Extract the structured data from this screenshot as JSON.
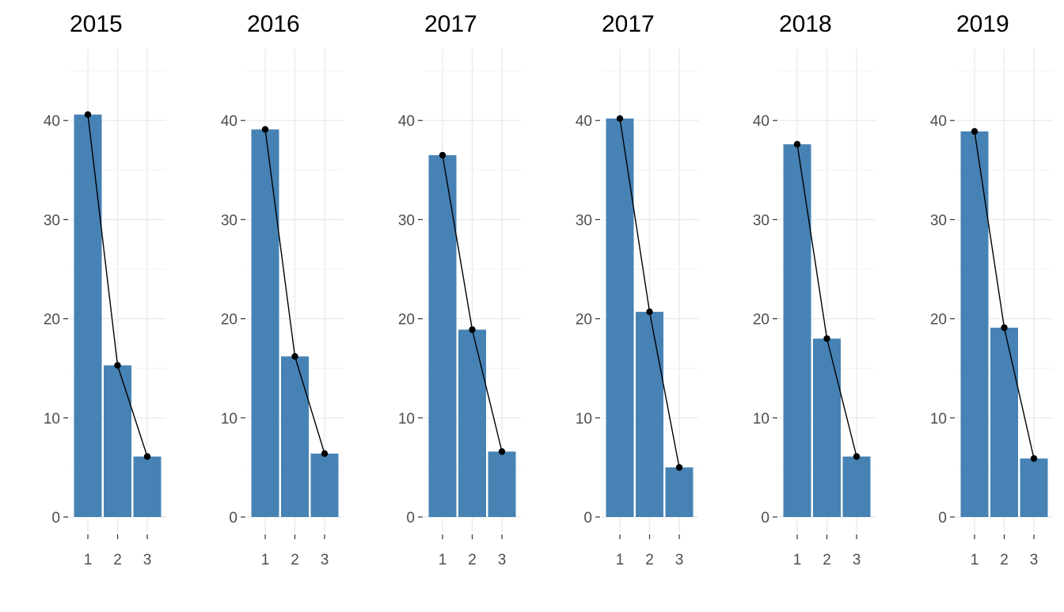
{
  "chart_data": {
    "type": "bar",
    "facet": "multi-panel",
    "categories": [
      "1",
      "2",
      "3"
    ],
    "ylim": [
      0,
      46
    ],
    "y_ticks": [
      0,
      10,
      20,
      30,
      40
    ],
    "grid": true,
    "bar_color": "#4682B4",
    "line_color": "#000000",
    "panels": [
      {
        "title": "2015",
        "values": [
          40.6,
          15.3,
          6.1
        ]
      },
      {
        "title": "2016",
        "values": [
          39.1,
          16.2,
          6.4
        ]
      },
      {
        "title": "2017",
        "values": [
          36.5,
          18.9,
          6.6
        ]
      },
      {
        "title": "2017",
        "values": [
          40.2,
          20.7,
          5.0
        ]
      },
      {
        "title": "2018",
        "values": [
          37.6,
          18.0,
          6.1
        ]
      },
      {
        "title": "2019",
        "values": [
          38.9,
          19.1,
          5.9
        ]
      }
    ]
  }
}
